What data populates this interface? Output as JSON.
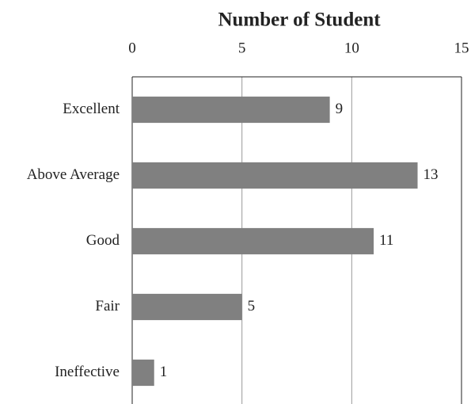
{
  "chart_data": {
    "type": "bar",
    "orientation": "horizontal",
    "title": "Number of Student",
    "categories": [
      "Excellent",
      "Above Average",
      "Good",
      "Fair",
      "Ineffective"
    ],
    "values": [
      9,
      13,
      11,
      5,
      1
    ],
    "color": "#808080",
    "xlim": [
      0,
      15
    ],
    "xticks": [
      0,
      5,
      10,
      15
    ],
    "grid": true
  }
}
